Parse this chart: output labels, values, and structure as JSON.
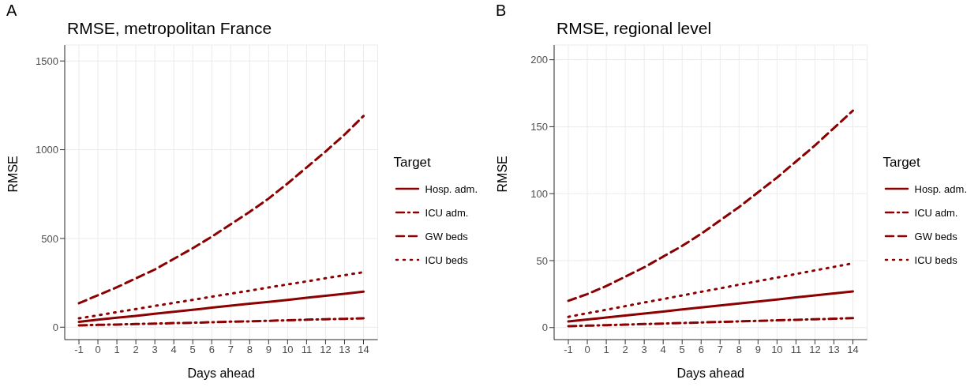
{
  "chart_data": [
    {
      "type": "line",
      "title": "RMSE, metropolitan France",
      "xlabel": "Days ahead",
      "ylabel": "RMSE",
      "legend_title": "Target",
      "annotations": [
        "A"
      ],
      "x": [
        -1,
        0,
        1,
        2,
        3,
        4,
        5,
        6,
        7,
        8,
        9,
        10,
        11,
        12,
        13,
        14
      ],
      "xlim": [
        -1.75,
        14.75
      ],
      "xticks": [
        -1,
        0,
        1,
        2,
        3,
        4,
        5,
        6,
        7,
        8,
        9,
        10,
        11,
        12,
        13,
        14
      ],
      "ylim": [
        -70,
        1590
      ],
      "yticks": [
        0,
        500,
        1000,
        1500
      ],
      "grid": true,
      "legend": "right",
      "series": [
        {
          "name": "Hosp. adm.",
          "color": "#8b0000",
          "line_style": "solid",
          "values": [
            30,
            42,
            53,
            64,
            76,
            87,
            98,
            110,
            121,
            132,
            143,
            154,
            166,
            177,
            188,
            200
          ]
        },
        {
          "name": "ICU adm.",
          "color": "#8b0000",
          "line_style": "dashdot",
          "values": [
            10,
            13,
            15,
            18,
            20,
            23,
            25,
            28,
            31,
            33,
            36,
            39,
            42,
            45,
            47,
            50
          ]
        },
        {
          "name": "GW beds",
          "color": "#8b0000",
          "line_style": "dashed",
          "values": [
            135,
            180,
            225,
            275,
            325,
            385,
            445,
            510,
            580,
            650,
            725,
            810,
            900,
            990,
            1085,
            1190
          ]
        },
        {
          "name": "ICU beds",
          "color": "#8b0000",
          "line_style": "dotted",
          "values": [
            50,
            67,
            85,
            102,
            120,
            137,
            154,
            172,
            189,
            206,
            224,
            241,
            258,
            276,
            293,
            310
          ]
        }
      ]
    },
    {
      "type": "line",
      "title": "RMSE, regional level",
      "xlabel": "Days ahead",
      "ylabel": "RMSE",
      "legend_title": "Target",
      "annotations": [
        "B"
      ],
      "x": [
        -1,
        0,
        1,
        2,
        3,
        4,
        5,
        6,
        7,
        8,
        9,
        10,
        11,
        12,
        13,
        14
      ],
      "xlim": [
        -1.75,
        14.75
      ],
      "xticks": [
        -1,
        0,
        1,
        2,
        3,
        4,
        5,
        6,
        7,
        8,
        9,
        10,
        11,
        12,
        13,
        14
      ],
      "ylim": [
        -9,
        211
      ],
      "yticks": [
        0,
        50,
        100,
        150,
        200
      ],
      "grid": true,
      "legend": "right",
      "series": [
        {
          "name": "Hosp. adm.",
          "color": "#8b0000",
          "line_style": "solid",
          "values": [
            4.5,
            6,
            7.5,
            9,
            10.5,
            12,
            13.5,
            15,
            16.5,
            18,
            19.5,
            21,
            22.5,
            24,
            25.5,
            27
          ]
        },
        {
          "name": "ICU adm.",
          "color": "#8b0000",
          "line_style": "dashdot",
          "values": [
            1,
            1.4,
            1.8,
            2.2,
            2.6,
            3,
            3.4,
            3.8,
            4.2,
            4.6,
            5,
            5.4,
            5.8,
            6.2,
            6.6,
            7
          ]
        },
        {
          "name": "GW beds",
          "color": "#8b0000",
          "line_style": "dashed",
          "values": [
            20,
            25,
            31,
            38,
            45,
            53,
            61,
            70,
            80,
            90,
            101,
            112,
            124,
            136,
            149,
            162
          ]
        },
        {
          "name": "ICU beds",
          "color": "#8b0000",
          "line_style": "dotted",
          "values": [
            8,
            10.7,
            13.3,
            16,
            18.7,
            21.3,
            24,
            26.7,
            29.3,
            32,
            34.7,
            37.3,
            40,
            42.7,
            45.3,
            48
          ]
        }
      ]
    }
  ]
}
